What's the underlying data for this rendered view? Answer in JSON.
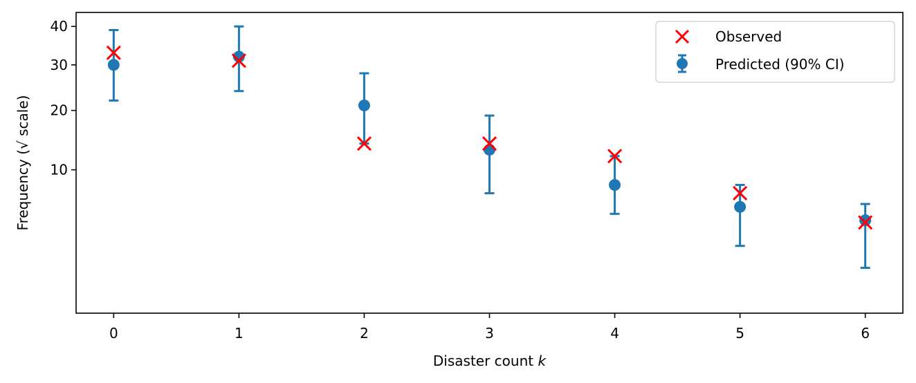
{
  "chart_data": {
    "type": "scatter",
    "xlabel": "Disaster count",
    "xlabel_var": "k",
    "ylabel": "Frequency (√ scale)",
    "y_scale": "sqrt",
    "x": [
      0,
      1,
      2,
      3,
      4,
      5,
      6
    ],
    "x_ticks": [
      "0",
      "1",
      "2",
      "3",
      "4",
      "5",
      "6"
    ],
    "y_ticks": [
      10,
      20,
      30,
      40
    ],
    "y_tick_labels": [
      "10",
      "20",
      "30",
      "40"
    ],
    "xlim": [
      -0.3,
      6.3
    ],
    "ylim": [
      0,
      44
    ],
    "grid": false,
    "legend_position": "top-right",
    "series": [
      {
        "name": "Observed",
        "marker": "x",
        "color": "#ff0000",
        "values": [
          33,
          31,
          14,
          14,
          12,
          7,
          4
        ]
      },
      {
        "name": "Predicted (90% CI)",
        "marker": "o",
        "color": "#1f77b4",
        "values": [
          30,
          32,
          21,
          13,
          8,
          5.5,
          4.2
        ],
        "ci_low": [
          22,
          24,
          14,
          7,
          4.8,
          2.2,
          1.0
        ],
        "ci_high": [
          39,
          40,
          28,
          19,
          12,
          8,
          5.8
        ]
      }
    ]
  }
}
